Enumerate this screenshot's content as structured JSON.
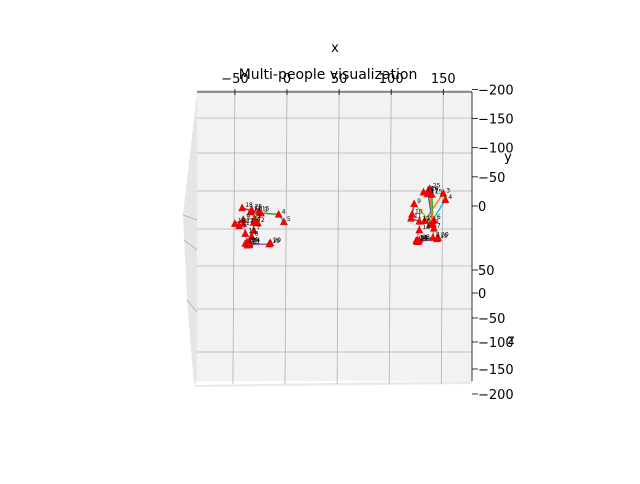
{
  "chart_data": {
    "type": "scatter",
    "title": "Multi-people visualization",
    "xlabel": "x",
    "ylabel": "y",
    "zlabel": "z",
    "x_ticks": [
      "−50",
      "0",
      "50",
      "100",
      "150"
    ],
    "y_ticks": [
      "−200",
      "−150",
      "−100",
      "−50",
      "0"
    ],
    "z_ticks": [
      "50",
      "0",
      "−50",
      "−100",
      "−150",
      "−200"
    ],
    "marker_color": "#ff0000",
    "grid": true,
    "people": [
      {
        "name": "",
        "points": [
          {
            "label": "1",
            "x": -31,
            "y": -12
          },
          {
            "label": "2",
            "x": -28,
            "y": -5
          },
          {
            "label": "3",
            "x": -25,
            "y": -22
          },
          {
            "label": "4",
            "x": -8,
            "y": -20
          },
          {
            "label": "5",
            "x": -3,
            "y": -7
          },
          {
            "label": "6",
            "x": -32,
            "y": -6
          },
          {
            "label": "7",
            "x": -32,
            "y": 8
          },
          {
            "label": "8",
            "x": -34,
            "y": 18
          },
          {
            "label": "9",
            "x": -42,
            "y": -11
          },
          {
            "label": "10",
            "x": -50,
            "y": -4
          },
          {
            "label": "11",
            "x": -46,
            "y": 0
          },
          {
            "label": "12",
            "x": -42,
            "y": -4
          },
          {
            "label": "13",
            "x": -40,
            "y": 13
          },
          {
            "label": "14",
            "x": -38,
            "y": 28
          },
          {
            "label": "15",
            "x": -27,
            "y": -25
          },
          {
            "label": "16",
            "x": -34,
            "y": -26
          },
          {
            "label": "17",
            "x": -35,
            "y": -24
          },
          {
            "label": "18",
            "x": -43,
            "y": -31
          },
          {
            "label": "19",
            "x": -17,
            "y": 31
          },
          {
            "label": "20",
            "x": -16,
            "y": 29
          },
          {
            "label": "21",
            "x": -36,
            "y": 32
          },
          {
            "label": "22",
            "x": -38,
            "y": 33
          },
          {
            "label": "23",
            "x": -40,
            "y": 30
          },
          {
            "label": "24",
            "x": -36,
            "y": 29
          },
          {
            "label": "25",
            "x": -34,
            "y": -28
          }
        ]
      },
      {
        "name": "",
        "points": [
          {
            "label": "1",
            "x": 140,
            "y": -3
          },
          {
            "label": "2",
            "x": 132,
            "y": -9
          },
          {
            "label": "3",
            "x": 150,
            "y": -56
          },
          {
            "label": "4",
            "x": 152,
            "y": -45
          },
          {
            "label": "5",
            "x": 137,
            "y": -2
          },
          {
            "label": "6",
            "x": 141,
            "y": -10
          },
          {
            "label": "7",
            "x": 141,
            "y": 4
          },
          {
            "label": "8",
            "x": 140,
            "y": 20
          },
          {
            "label": "9",
            "x": 122,
            "y": -38
          },
          {
            "label": "10",
            "x": 120,
            "y": -20
          },
          {
            "label": "11",
            "x": 119,
            "y": -13
          },
          {
            "label": "12",
            "x": 127,
            "y": -8
          },
          {
            "label": "13",
            "x": 127,
            "y": 7
          },
          {
            "label": "14",
            "x": 124,
            "y": 25
          },
          {
            "label": "15",
            "x": 139,
            "y": -54
          },
          {
            "label": "16",
            "x": 135,
            "y": -59
          },
          {
            "label": "17",
            "x": 135,
            "y": -55
          },
          {
            "label": "18",
            "x": 131,
            "y": -58
          },
          {
            "label": "19",
            "x": 144,
            "y": 22
          },
          {
            "label": "20",
            "x": 145,
            "y": 20
          },
          {
            "label": "21",
            "x": 125,
            "y": 27
          },
          {
            "label": "22",
            "x": 126,
            "y": 27
          },
          {
            "label": "23",
            "x": 127,
            "y": 24
          },
          {
            "label": "24",
            "x": 125,
            "y": 25
          },
          {
            "label": "25",
            "x": 137,
            "y": -64
          }
        ]
      }
    ]
  }
}
